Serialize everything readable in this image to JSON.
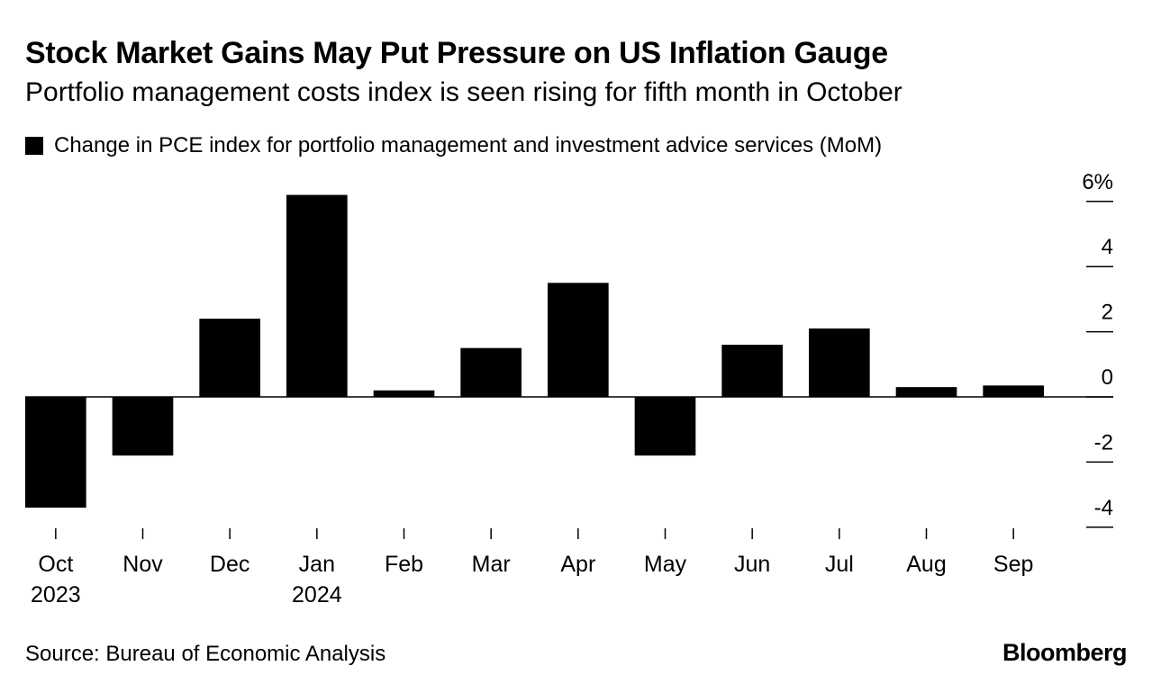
{
  "chart_data": {
    "type": "bar",
    "title": "Stock Market Gains May Put Pressure on US Inflation Gauge",
    "subtitle": "Portfolio management costs index is seen rising for fifth month in October",
    "legend": [
      "Change in PCE index for portfolio management and investment advice services (MoM)"
    ],
    "categories": [
      "Oct",
      "Nov",
      "Dec",
      "Jan",
      "Feb",
      "Mar",
      "Apr",
      "May",
      "Jun",
      "Jul",
      "Aug",
      "Sep"
    ],
    "year_labels": [
      "2023",
      "",
      "",
      "2024",
      "",
      "",
      "",
      "",
      "",
      "",
      "",
      ""
    ],
    "values": [
      -3.4,
      -1.8,
      2.4,
      6.2,
      0.2,
      1.5,
      3.5,
      -1.8,
      1.6,
      2.1,
      0.3,
      0.35
    ],
    "ylim": [
      -4.2,
      6.2
    ],
    "yticks": [
      -4,
      -2,
      0,
      2,
      4,
      6
    ],
    "ytick_labels": [
      "-4",
      "-2",
      "0",
      "2",
      "4",
      "6%"
    ],
    "xlabel": "",
    "ylabel": "",
    "grid": false,
    "bar_color": "#000000",
    "axis_color": "#000000"
  },
  "footer": {
    "source": "Source: Bureau of Economic Analysis",
    "brand": "Bloomberg"
  }
}
